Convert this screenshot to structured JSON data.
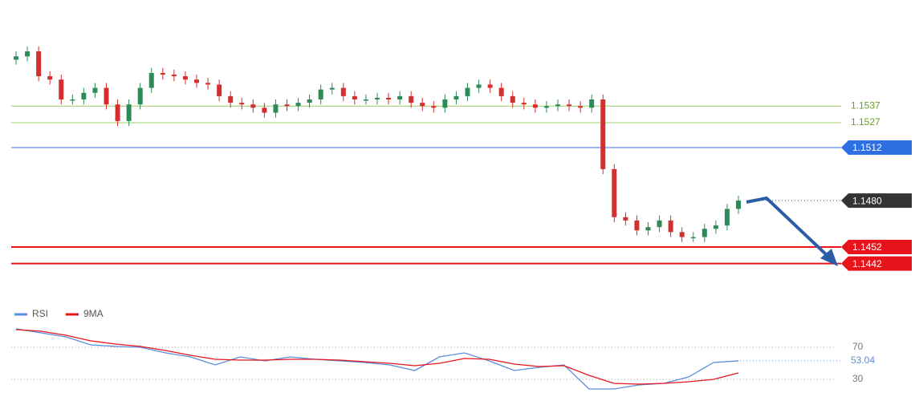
{
  "chart_data": [
    {
      "type": "candlestick",
      "up_color": "#2e8b57",
      "down_color": "#d32f2f",
      "open": [
        1.1565,
        1.1567,
        1.157,
        1.1555,
        1.1553,
        1.1541,
        1.1541,
        1.1545,
        1.1548,
        1.1538,
        1.1528,
        1.1538,
        1.1548,
        1.1557,
        1.1556,
        1.1555,
        1.1553,
        1.1551,
        1.155,
        1.1543,
        1.1539,
        1.1538,
        1.1536,
        1.1533,
        1.1538,
        1.1537,
        1.1539,
        1.1541,
        1.1547,
        1.1548,
        1.1543,
        1.1541,
        1.1541,
        1.1542,
        1.1541,
        1.1543,
        1.1539,
        1.1537,
        1.1536,
        1.1541,
        1.1543,
        1.1548,
        1.155,
        1.1548,
        1.1543,
        1.1539,
        1.1538,
        1.1536,
        1.1537,
        1.1538,
        1.1537,
        1.1536,
        1.1541,
        1.1499,
        1.147,
        1.1468,
        1.1462,
        1.1464,
        1.1468,
        1.1461,
        1.1458,
        1.1458,
        1.1463,
        1.1465,
        1.1475
      ],
      "high": [
        1.157,
        1.1573,
        1.1573,
        1.1558,
        1.1556,
        1.1544,
        1.1548,
        1.1551,
        1.1551,
        1.1541,
        1.1541,
        1.1551,
        1.156,
        1.156,
        1.1559,
        1.1558,
        1.1556,
        1.1554,
        1.1553,
        1.1546,
        1.1542,
        1.1541,
        1.1539,
        1.1541,
        1.1541,
        1.1542,
        1.1544,
        1.155,
        1.1551,
        1.1551,
        1.1546,
        1.1544,
        1.1545,
        1.1545,
        1.1546,
        1.1546,
        1.1542,
        1.154,
        1.1544,
        1.1546,
        1.1551,
        1.1553,
        1.1553,
        1.1551,
        1.1546,
        1.1542,
        1.1541,
        1.154,
        1.1541,
        1.1541,
        1.154,
        1.1544,
        1.1544,
        1.1502,
        1.1473,
        1.1471,
        1.1467,
        1.1471,
        1.1471,
        1.1464,
        1.1461,
        1.1466,
        1.1468,
        1.1478,
        1.1483
      ],
      "low": [
        1.1562,
        1.1564,
        1.1552,
        1.155,
        1.1538,
        1.1538,
        1.1538,
        1.1542,
        1.1535,
        1.1525,
        1.1525,
        1.1535,
        1.1545,
        1.1553,
        1.1552,
        1.155,
        1.1548,
        1.1547,
        1.154,
        1.1536,
        1.1535,
        1.1533,
        1.153,
        1.153,
        1.1534,
        1.1534,
        1.1536,
        1.1538,
        1.1544,
        1.154,
        1.1538,
        1.1538,
        1.1538,
        1.1538,
        1.1538,
        1.1536,
        1.1534,
        1.1533,
        1.1533,
        1.1538,
        1.154,
        1.1545,
        1.1545,
        1.154,
        1.1536,
        1.1535,
        1.1533,
        1.1533,
        1.1534,
        1.1534,
        1.1533,
        1.1533,
        1.1496,
        1.1467,
        1.1465,
        1.1459,
        1.1459,
        1.1461,
        1.1458,
        1.1455,
        1.1455,
        1.1455,
        1.146,
        1.1462,
        1.1472
      ],
      "close": [
        1.1567,
        1.157,
        1.1555,
        1.1553,
        1.1541,
        1.1541,
        1.1545,
        1.1548,
        1.1538,
        1.1528,
        1.1538,
        1.1548,
        1.1557,
        1.1556,
        1.1555,
        1.1553,
        1.1551,
        1.155,
        1.1543,
        1.1539,
        1.1538,
        1.1536,
        1.1533,
        1.1538,
        1.1537,
        1.1539,
        1.1541,
        1.1547,
        1.1548,
        1.1543,
        1.1541,
        1.1541,
        1.1542,
        1.1541,
        1.1543,
        1.1539,
        1.1537,
        1.1536,
        1.1541,
        1.1543,
        1.1548,
        1.155,
        1.1548,
        1.1543,
        1.1539,
        1.1538,
        1.1536,
        1.1537,
        1.1538,
        1.1537,
        1.1536,
        1.1541,
        1.1499,
        1.147,
        1.1468,
        1.1462,
        1.1464,
        1.1468,
        1.1461,
        1.1458,
        1.1458,
        1.1463,
        1.1465,
        1.1475,
        1.148
      ],
      "ylim": [
        1.1422,
        1.1601
      ],
      "levels": [
        {
          "value": 1.1537,
          "color": "#9ccc65",
          "style": "text"
        },
        {
          "value": 1.1527,
          "color": "#9ccc65",
          "style": "text"
        },
        {
          "value": 1.1512,
          "color": "#2f6fe4",
          "style": "tag"
        },
        {
          "value": 1.148,
          "label": "1.1480",
          "color": "#333333",
          "style": "tag-dotted"
        },
        {
          "value": 1.1452,
          "color": "#e8141b",
          "style": "tag"
        },
        {
          "value": 1.1442,
          "color": "#e8141b",
          "style": "tag"
        }
      ]
    },
    {
      "type": "line",
      "series": [
        {
          "name": "RSI",
          "color": "#5b8ddf",
          "values": [
            93,
            88,
            83,
            73,
            71,
            70,
            63,
            58,
            48,
            58,
            53,
            58,
            55,
            53,
            51,
            48,
            41,
            58,
            63,
            53,
            41,
            45,
            48,
            18,
            18,
            23,
            25,
            33,
            51,
            53.04
          ]
        },
        {
          "name": "9MA",
          "color": "#e8141b",
          "values": [
            92,
            90,
            85,
            78,
            74,
            71,
            66,
            60,
            55,
            54,
            54,
            55,
            55,
            54,
            52,
            50,
            47,
            50,
            56,
            55,
            49,
            46,
            47,
            35,
            25,
            24,
            25,
            27,
            30,
            38
          ]
        }
      ],
      "ylim": [
        13,
        100
      ],
      "yticks": [
        70,
        30
      ],
      "grid": true
    }
  ]
}
